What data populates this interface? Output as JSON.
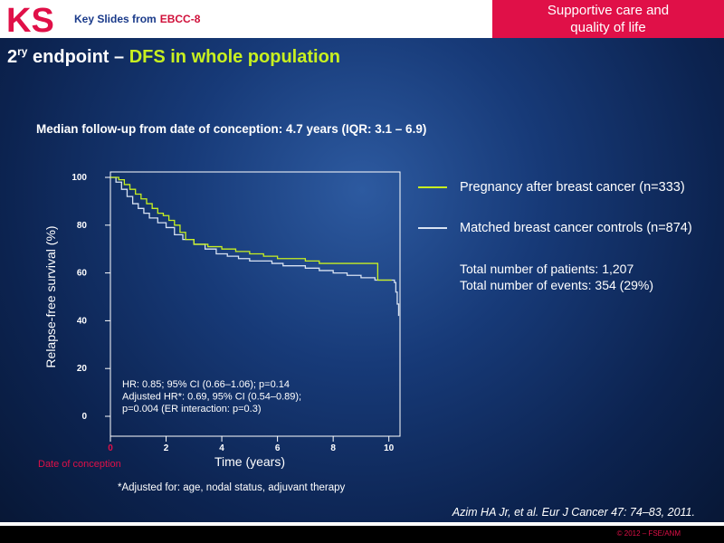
{
  "header": {
    "logo_text": "KS",
    "key_slides": "Key Slides from",
    "conference": "EBCC-8",
    "topic_line1": "Supportive care and",
    "topic_line2": "quality of life"
  },
  "title": {
    "prefix": "2",
    "superscript": "ry",
    "middle": " endpoint – ",
    "highlight": "DFS in whole population"
  },
  "subtitle": "Median follow-up from date of conception: 4.7 years (IQR: 3.1 – 6.9)",
  "legend": {
    "pregnancy": "Pregnancy after breast cancer (n=333)",
    "controls": "Matched breast cancer controls (n=874)"
  },
  "totals": {
    "patients": "Total number of patients: 1,207",
    "events": "Total number of events: 354 (29%)"
  },
  "hr_text": {
    "line1": "HR: 0.85; 95% CI (0.66–1.06); p=0.14",
    "line2": "Adjusted HR*: 0.69, 95% CI (0.54–0.89);",
    "line3": "p=0.004 (ER interaction: p=0.3)"
  },
  "footnote": "*Adjusted for: age, nodal status, adjuvant therapy",
  "citation": "Azim HA Jr, et al. Eur J Cancer 47: 74–83, 2011.",
  "copyright": "© 2012 – FSE/ANM",
  "colors": {
    "pregnancy": "#c8f020",
    "controls": "#d8e2f2",
    "accent": "#e01048",
    "title_highlight": "#c8f020"
  },
  "chart_data": {
    "type": "line",
    "title": "",
    "xlabel": "Time (years)",
    "ylabel": "Relapse-free survival (%)",
    "x_origin_label": "Date of conception",
    "xlim": [
      0,
      10.4
    ],
    "ylim": [
      0,
      100
    ],
    "xticks": [
      0,
      2,
      4,
      6,
      8,
      10
    ],
    "yticks": [
      0,
      20,
      40,
      60,
      80,
      100
    ],
    "legend_position": "right",
    "grid": false,
    "series": [
      {
        "name": "Pregnancy after breast cancer (n=333)",
        "color": "#c8f020",
        "step": true,
        "x": [
          0,
          0.3,
          0.5,
          0.7,
          0.9,
          1.1,
          1.3,
          1.5,
          1.7,
          1.9,
          2.1,
          2.3,
          2.5,
          2.7,
          3.0,
          3.2,
          3.5,
          4.0,
          4.5,
          5.0,
          5.5,
          6.0,
          6.5,
          7.0,
          7.5,
          8.0,
          8.5,
          9.0,
          9.6,
          10.0,
          10.1
        ],
        "y": [
          100,
          99,
          97,
          95,
          93,
          91,
          89,
          87,
          85,
          84,
          82,
          80,
          77,
          74,
          72,
          72,
          71,
          70,
          69,
          68,
          67,
          66,
          66,
          65,
          64,
          64,
          64,
          64,
          57,
          57,
          57
        ]
      },
      {
        "name": "Matched breast cancer controls (n=874)",
        "color": "#d8e2f2",
        "step": true,
        "x": [
          0,
          0.2,
          0.4,
          0.6,
          0.8,
          1.0,
          1.2,
          1.4,
          1.7,
          2.0,
          2.3,
          2.6,
          3.0,
          3.4,
          3.8,
          4.2,
          4.6,
          5.0,
          5.4,
          5.8,
          6.2,
          6.6,
          7.0,
          7.5,
          8.0,
          8.5,
          9.0,
          9.5,
          10.0,
          10.2,
          10.25,
          10.3,
          10.35
        ],
        "y": [
          100,
          98,
          95,
          92,
          89,
          87,
          85,
          83,
          81,
          79,
          76,
          74,
          72,
          70,
          68,
          67,
          66,
          65,
          65,
          64,
          63,
          63,
          62,
          61,
          60,
          59,
          58,
          57,
          57,
          56,
          52,
          47,
          42
        ]
      }
    ]
  }
}
